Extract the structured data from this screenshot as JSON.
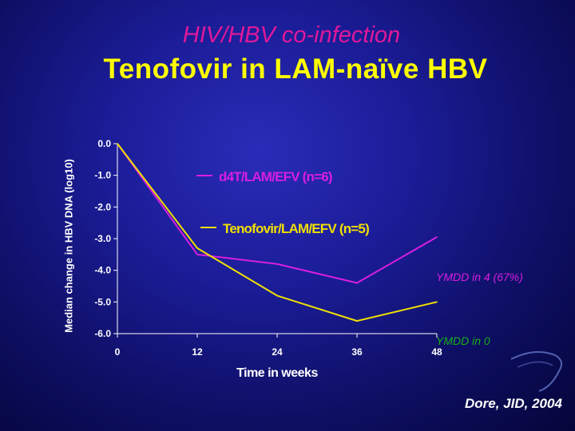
{
  "header": {
    "subtitle": "HIV/HBV co-infection",
    "title": "Tenofovir in LAM-naïve HBV"
  },
  "chart_data": {
    "type": "line",
    "xlabel": "Time in weeks",
    "ylabel": "Median change in HBV DNA (log10)",
    "x": [
      0,
      12,
      24,
      36,
      48
    ],
    "xticks": [
      "0",
      "12",
      "24",
      "36",
      "48"
    ],
    "yticks": [
      "0.0",
      "-1.0",
      "-2.0",
      "-3.0",
      "-4.0",
      "-5.0",
      "-6.0"
    ],
    "xlim": [
      0,
      48
    ],
    "ylim": [
      -6,
      0
    ],
    "series": [
      {
        "name": "d4T/LAM/EFV (n=6)",
        "color": "#d81ee0",
        "values": [
          0.0,
          -3.5,
          -3.8,
          -4.4,
          -2.95
        ],
        "end_annotation": "YMDD in 4 (67%)",
        "annotation_color": "#d81ee0"
      },
      {
        "name": "Tenofovir/LAM/EFV (n=5)",
        "color": "#f0e000",
        "values": [
          0.0,
          -3.3,
          -4.8,
          -5.6,
          -5.0
        ],
        "end_annotation": "YMDD in 0",
        "annotation_color": "#18b018"
      }
    ],
    "grid": false,
    "legend_position": "inside-top"
  },
  "footer": {
    "citation": "Dore, JID, 2004"
  },
  "colors": {
    "subtitle": "#e0189a",
    "title": "#ffff00",
    "axis_text": "#ffffff"
  }
}
